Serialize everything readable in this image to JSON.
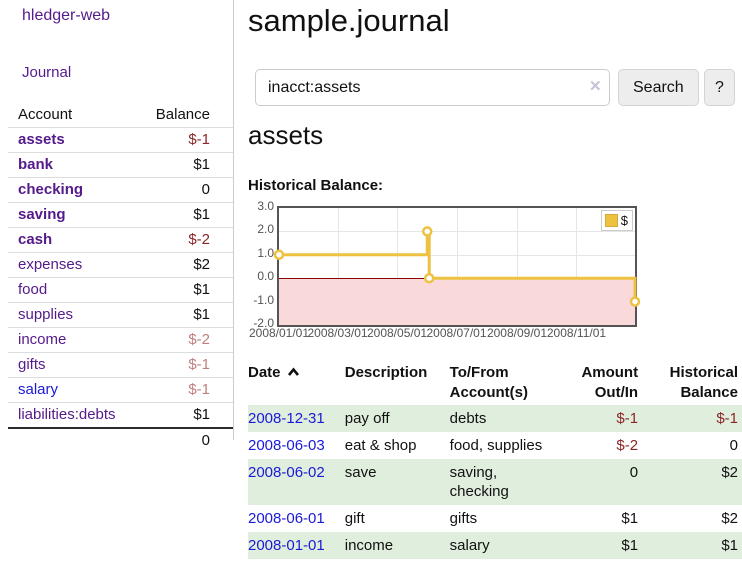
{
  "colors": {
    "link_purple": "#551A8B",
    "link_blue": "#1a1ad6",
    "negative": "#8b2626",
    "negative_faded": "#c08080",
    "row_highlight_green": "#e0eedd",
    "chart_line_gold": "#EDC240",
    "chart_negative_pink": "#f9d9d9",
    "chart_zero_line": "#8b0000"
  },
  "sidebar": {
    "brand": "hledger-web",
    "nav": "Journal",
    "account_header": "Account",
    "balance_header": "Balance",
    "accounts": [
      {
        "name": "assets",
        "indent": 0,
        "bold": true,
        "link": "purple",
        "balance": "$-1",
        "balance_style": "neg"
      },
      {
        "name": "bank",
        "indent": 1,
        "bold": true,
        "link": "purple",
        "balance": "$1",
        "balance_style": "pos"
      },
      {
        "name": "checking",
        "indent": 2,
        "bold": true,
        "link": "purple",
        "balance": "0",
        "balance_style": "pos"
      },
      {
        "name": "saving",
        "indent": 2,
        "bold": true,
        "link": "purple",
        "balance": "$1",
        "balance_style": "pos"
      },
      {
        "name": "cash",
        "indent": 1,
        "bold": true,
        "link": "purple",
        "balance": "$-2",
        "balance_style": "neg"
      },
      {
        "name": "expenses",
        "indent": 0,
        "bold": false,
        "link": "purple",
        "balance": "$2",
        "balance_style": "pos"
      },
      {
        "name": "food",
        "indent": 1,
        "bold": false,
        "link": "purple",
        "balance": "$1",
        "balance_style": "pos"
      },
      {
        "name": "supplies",
        "indent": 1,
        "bold": false,
        "link": "purple",
        "balance": "$1",
        "balance_style": "pos"
      },
      {
        "name": "income",
        "indent": 0,
        "bold": false,
        "link": "purple",
        "balance": "$-2",
        "balance_style": "negfade"
      },
      {
        "name": "gifts",
        "indent": 1,
        "bold": false,
        "link": "purple",
        "balance": "$-1",
        "balance_style": "negfade"
      },
      {
        "name": "salary",
        "indent": 1,
        "bold": false,
        "link": "blue",
        "balance": "$-1",
        "balance_style": "negfade"
      },
      {
        "name": "liabilities:debts",
        "indent": 0,
        "bold": false,
        "link": "purple",
        "balance": "$1",
        "balance_style": "pos"
      }
    ],
    "total": "0"
  },
  "main": {
    "title": "sample.journal",
    "search": {
      "value": "inacct:assets",
      "clear_icon": "✕",
      "search_button": "Search",
      "help_button": "?"
    },
    "account_heading": "assets",
    "chart_label": "Historical Balance:"
  },
  "chart_data": {
    "type": "line",
    "title": "Historical Balance",
    "style": "step",
    "series": [
      {
        "name": "$",
        "color": "#EDC240",
        "points": [
          [
            "2008-01-01",
            1
          ],
          [
            "2008-06-01",
            2
          ],
          [
            "2008-06-03",
            0
          ],
          [
            "2008-12-31",
            -1
          ]
        ]
      }
    ],
    "x_range": [
      "2008-01-01",
      "2008-12-31"
    ],
    "x_ticks": [
      "2008/01/01",
      "2008/03/01",
      "2008/05/01",
      "2008/07/01",
      "2008/09/01",
      "2008/11/01"
    ],
    "y_ticks": [
      "3.0",
      "2.0",
      "1.0",
      "0.0",
      "-1.0",
      "-2.0"
    ],
    "ylim": [
      -2,
      3
    ],
    "grid": true,
    "legend": {
      "label": "$",
      "position": "top-right"
    }
  },
  "register": {
    "columns": [
      {
        "label": "Date",
        "sorted": "asc"
      },
      {
        "label": "Description"
      },
      {
        "label": "To/From\nAccount(s)"
      },
      {
        "label": "Amount\nOut/In",
        "align": "right"
      },
      {
        "label": "Historical\nBalance",
        "align": "right"
      }
    ],
    "rows": [
      {
        "date": "2008-12-31",
        "description": "pay off",
        "accounts": "debts",
        "amount": "$-1",
        "amount_neg": true,
        "balance": "$-1",
        "balance_neg": true,
        "highlight": true
      },
      {
        "date": "2008-06-03",
        "description": "eat & shop",
        "accounts": "food, supplies",
        "amount": "$-2",
        "amount_neg": true,
        "balance": "0",
        "balance_neg": false,
        "highlight": false
      },
      {
        "date": "2008-06-02",
        "description": "save",
        "accounts": "saving,\nchecking",
        "amount": "0",
        "amount_neg": false,
        "balance": "$2",
        "balance_neg": false,
        "highlight": true
      },
      {
        "date": "2008-06-01",
        "description": "gift",
        "accounts": "gifts",
        "amount": "$1",
        "amount_neg": false,
        "balance": "$2",
        "balance_neg": false,
        "highlight": false
      },
      {
        "date": "2008-01-01",
        "description": "income",
        "accounts": "salary",
        "amount": "$1",
        "amount_neg": false,
        "balance": "$1",
        "balance_neg": false,
        "highlight": true
      }
    ]
  }
}
